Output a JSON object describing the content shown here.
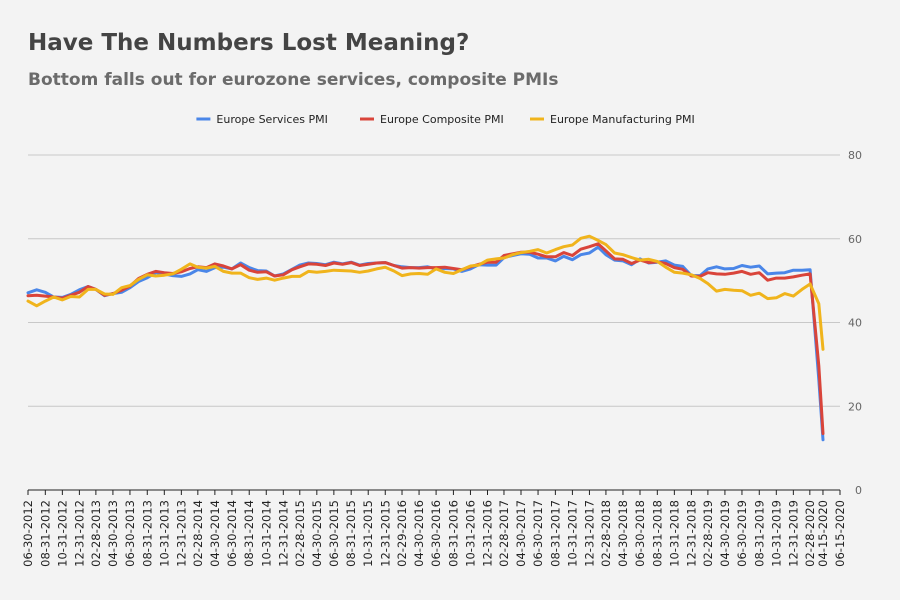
{
  "chart_data": {
    "type": "line",
    "title": "Have The Numbers Lost Meaning?",
    "subtitle": "Bottom falls out for eurozone services, composite PMIs",
    "xlabel": "",
    "ylabel": "",
    "ylim": [
      0,
      80
    ],
    "yticks": [
      0,
      20,
      40,
      60,
      80
    ],
    "grid": true,
    "legend_position": "top-center",
    "x_tick_labels": [
      "06-30-2012",
      "08-31-2012",
      "10-31-2012",
      "12-31-2012",
      "02-28-2013",
      "04-30-2013",
      "06-30-2013",
      "08-31-2013",
      "10-31-2013",
      "12-31-2013",
      "02-28-2014",
      "04-30-2014",
      "06-30-2014",
      "08-31-2014",
      "10-31-2014",
      "12-31-2014",
      "02-28-2015",
      "04-30-2015",
      "06-30-2015",
      "08-31-2015",
      "10-31-2015",
      "12-31-2015",
      "02-29-2016",
      "04-30-2016",
      "06-30-2016",
      "08-31-2016",
      "10-31-2016",
      "12-31-2016",
      "02-28-2017",
      "04-30-2017",
      "06-30-2017",
      "08-31-2017",
      "10-31-2017",
      "12-31-2017",
      "02-28-2018",
      "04-30-2018",
      "06-30-2018",
      "08-31-2018",
      "10-31-2018",
      "12-31-2018",
      "02-28-2019",
      "04-30-2019",
      "06-30-2019",
      "08-31-2019",
      "10-31-2019",
      "12-31-2019",
      "02-28-2020",
      "04-15-2020",
      "06-15-2020"
    ],
    "x": [
      "06-30-2012",
      "07-31-2012",
      "08-31-2012",
      "09-30-2012",
      "10-31-2012",
      "11-30-2012",
      "12-31-2012",
      "01-31-2013",
      "02-28-2013",
      "03-31-2013",
      "04-30-2013",
      "05-31-2013",
      "06-30-2013",
      "07-31-2013",
      "08-31-2013",
      "09-30-2013",
      "10-31-2013",
      "11-30-2013",
      "12-31-2013",
      "01-31-2014",
      "02-28-2014",
      "03-31-2014",
      "04-30-2014",
      "05-31-2014",
      "06-30-2014",
      "07-31-2014",
      "08-31-2014",
      "09-30-2014",
      "10-31-2014",
      "11-30-2014",
      "12-31-2014",
      "01-31-2015",
      "02-28-2015",
      "03-31-2015",
      "04-30-2015",
      "05-31-2015",
      "06-30-2015",
      "07-31-2015",
      "08-31-2015",
      "09-30-2015",
      "10-31-2015",
      "11-30-2015",
      "12-31-2015",
      "01-31-2016",
      "02-29-2016",
      "03-31-2016",
      "04-30-2016",
      "05-31-2016",
      "06-30-2016",
      "07-31-2016",
      "08-31-2016",
      "09-30-2016",
      "10-31-2016",
      "11-30-2016",
      "12-31-2016",
      "01-31-2017",
      "02-28-2017",
      "03-31-2017",
      "04-30-2017",
      "05-31-2017",
      "06-30-2017",
      "07-31-2017",
      "08-31-2017",
      "09-30-2017",
      "10-31-2017",
      "11-30-2017",
      "12-31-2017",
      "01-31-2018",
      "02-28-2018",
      "03-31-2018",
      "04-30-2018",
      "05-31-2018",
      "06-30-2018",
      "07-31-2018",
      "08-31-2018",
      "09-30-2018",
      "10-31-2018",
      "11-30-2018",
      "12-31-2018",
      "01-31-2019",
      "02-28-2019",
      "03-31-2019",
      "04-30-2019",
      "05-31-2019",
      "06-30-2019",
      "07-31-2019",
      "08-31-2019",
      "09-30-2019",
      "10-31-2019",
      "11-30-2019",
      "12-31-2019",
      "01-31-2020",
      "02-29-2020",
      "03-31-2020",
      "04-15-2020"
    ],
    "series": [
      {
        "name": "Europe Services PMI",
        "color": "#4a86e8",
        "values": [
          47.1,
          47.8,
          47.2,
          46.1,
          46.0,
          46.7,
          47.8,
          48.6,
          47.9,
          46.4,
          46.9,
          47.2,
          48.3,
          49.8,
          50.7,
          51.9,
          51.6,
          51.2,
          51.0,
          51.6,
          52.6,
          52.2,
          53.1,
          53.2,
          52.8,
          54.2,
          53.1,
          52.4,
          52.3,
          51.1,
          51.6,
          52.7,
          53.7,
          54.2,
          54.1,
          53.8,
          54.4,
          54.0,
          54.4,
          53.7,
          54.1,
          54.2,
          54.3,
          53.6,
          53.3,
          53.1,
          53.1,
          53.3,
          52.8,
          52.9,
          52.8,
          52.2,
          52.8,
          53.8,
          53.7,
          53.7,
          55.5,
          56.0,
          56.4,
          56.3,
          55.4,
          55.4,
          54.7,
          55.8,
          55.0,
          56.2,
          56.6,
          58.0,
          56.2,
          54.9,
          54.7,
          53.8,
          55.2,
          54.2,
          54.4,
          54.7,
          53.7,
          53.4,
          51.2,
          51.2,
          52.8,
          53.3,
          52.8,
          52.9,
          53.6,
          53.2,
          53.5,
          51.6,
          51.8,
          51.9,
          52.5,
          52.5,
          52.6,
          26.4,
          12.0
        ]
      },
      {
        "name": "Europe Composite PMI",
        "color": "#d9443a",
        "values": [
          46.4,
          46.5,
          46.3,
          46.1,
          45.8,
          46.5,
          47.2,
          48.6,
          47.9,
          46.5,
          46.9,
          47.7,
          48.7,
          50.5,
          51.5,
          52.2,
          51.9,
          51.7,
          52.1,
          52.9,
          53.3,
          53.1,
          54.0,
          53.5,
          52.8,
          53.8,
          52.5,
          52.0,
          52.1,
          51.1,
          51.4,
          52.6,
          53.3,
          54.0,
          53.9,
          53.6,
          54.2,
          53.9,
          54.3,
          53.6,
          53.9,
          54.2,
          54.3,
          53.6,
          53.0,
          53.1,
          53.0,
          53.1,
          53.1,
          53.2,
          52.9,
          52.6,
          53.3,
          53.9,
          54.4,
          54.4,
          56.0,
          56.4,
          56.8,
          56.8,
          56.3,
          55.7,
          55.7,
          56.7,
          56.0,
          57.5,
          58.1,
          58.8,
          57.1,
          55.2,
          55.1,
          54.1,
          54.9,
          54.3,
          54.5,
          54.1,
          53.1,
          52.7,
          51.1,
          51.0,
          51.9,
          51.6,
          51.5,
          51.8,
          52.2,
          51.5,
          51.9,
          50.1,
          50.6,
          50.6,
          50.9,
          51.3,
          51.6,
          29.7,
          13.5
        ]
      },
      {
        "name": "Europe Manufacturing PMI",
        "color": "#f0b41c",
        "values": [
          45.1,
          44.0,
          45.1,
          46.1,
          45.4,
          46.2,
          46.1,
          47.9,
          47.9,
          46.8,
          46.7,
          48.3,
          48.8,
          50.3,
          51.4,
          51.1,
          51.3,
          51.6,
          52.7,
          54.0,
          53.2,
          53.0,
          53.4,
          52.2,
          51.8,
          51.8,
          50.7,
          50.3,
          50.6,
          50.1,
          50.6,
          51.0,
          51.0,
          52.2,
          52.0,
          52.2,
          52.5,
          52.4,
          52.3,
          52.0,
          52.3,
          52.8,
          53.2,
          52.3,
          51.2,
          51.6,
          51.7,
          51.5,
          52.8,
          52.0,
          51.7,
          52.6,
          53.5,
          53.7,
          54.9,
          55.2,
          55.4,
          56.2,
          56.7,
          57.0,
          57.4,
          56.6,
          57.4,
          58.1,
          58.5,
          60.1,
          60.6,
          59.6,
          58.6,
          56.6,
          56.2,
          55.5,
          54.9,
          55.1,
          54.6,
          53.2,
          52.0,
          51.8,
          51.4,
          50.5,
          49.3,
          47.5,
          47.9,
          47.7,
          47.6,
          46.5,
          47.0,
          45.7,
          45.9,
          46.9,
          46.3,
          47.9,
          49.2,
          44.5,
          33.6
        ]
      }
    ]
  }
}
